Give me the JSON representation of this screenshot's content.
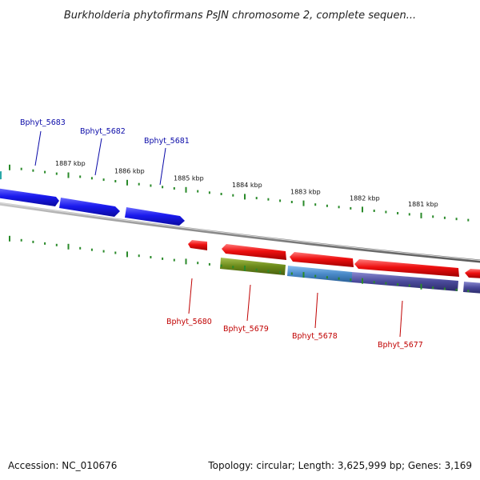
{
  "title": "Burkholderia phytofirmans PsJN chromosome 2, complete sequen...",
  "footer": {
    "accession": "Accession: NC_010676",
    "topology": "Topology: circular; Length: 3,625,999 bp; Genes: 3,169"
  },
  "colors": {
    "upper_genes": "#1010ee",
    "lower_genes": "#ee1010",
    "ticks": "#2a8a2a",
    "backbone": "#8a8a8a",
    "label_blue": "#0a0aa8",
    "label_red": "#c00000",
    "olive": "#6a8a1a",
    "steel": "#4a8ac8",
    "indigo": "#4a4a9a"
  },
  "ruler": {
    "unit": "kbp",
    "labels": [
      "1887 kbp",
      "1886 kbp",
      "1885 kbp",
      "1884 kbp",
      "1883 kbp",
      "1882 kbp",
      "1881 kbp"
    ]
  },
  "genes": {
    "upper": [
      {
        "label": "Bphyt_5683"
      },
      {
        "label": "Bphyt_5682"
      },
      {
        "label": "Bphyt_5681"
      }
    ],
    "lower": [
      {
        "label": "Bphyt_5680"
      },
      {
        "label": "Bphyt_5679"
      },
      {
        "label": "Bphyt_5678"
      },
      {
        "label": "Bphyt_5677"
      }
    ]
  }
}
